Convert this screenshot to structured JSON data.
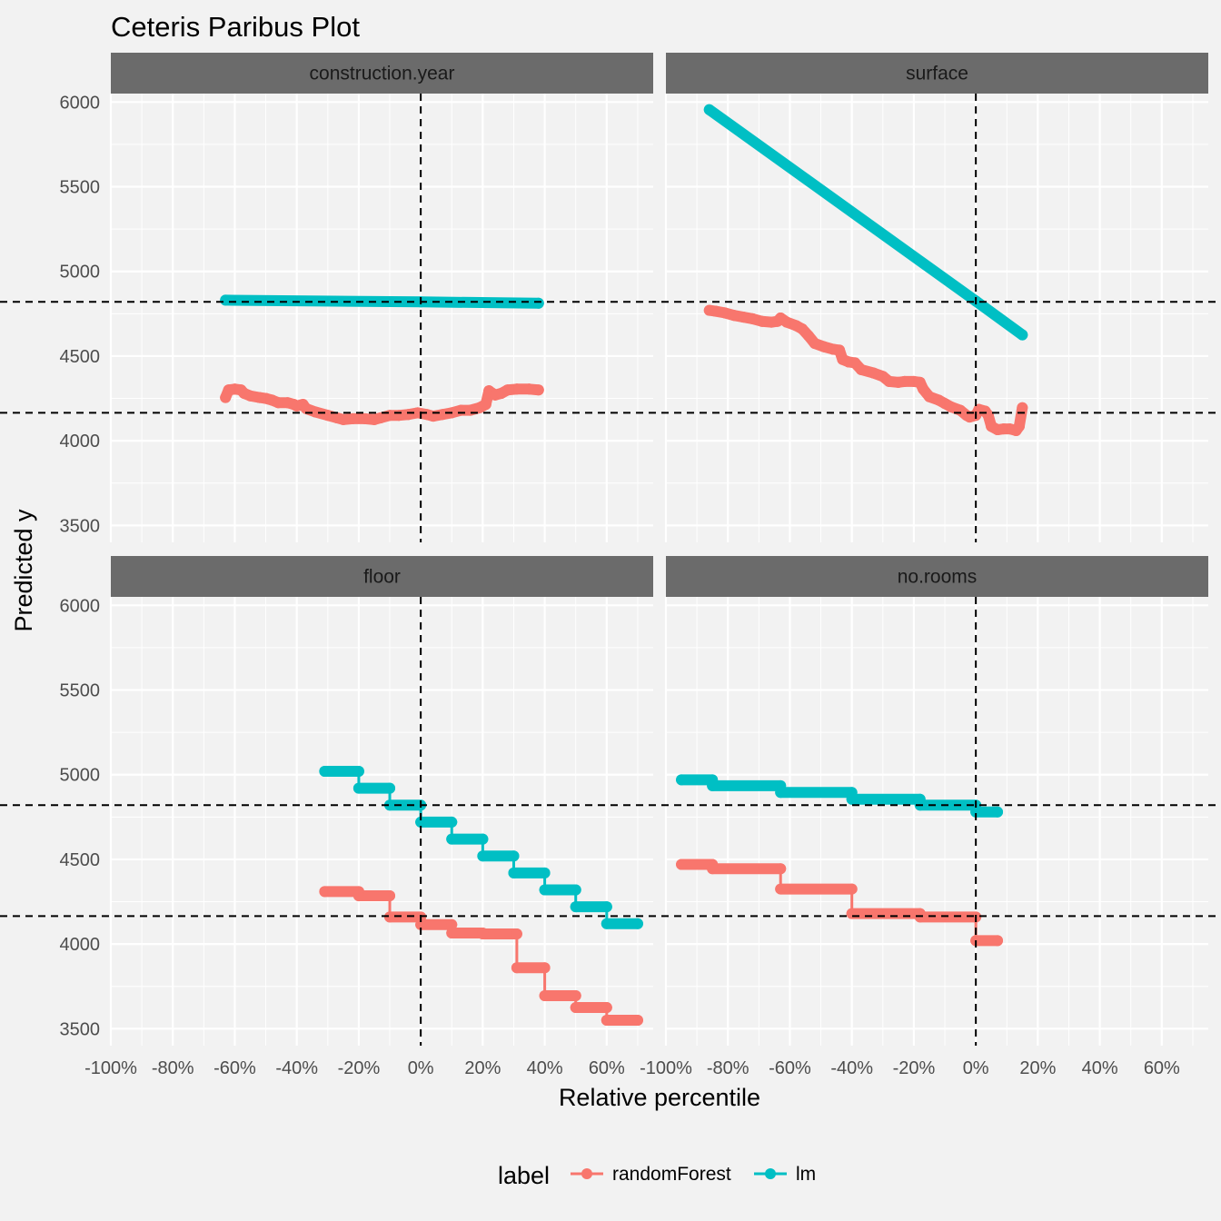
{
  "chart_data": {
    "type": "line",
    "title": "Ceteris Paribus Plot",
    "xlabel": "Relative percentile",
    "ylabel": "Predicted y",
    "xlim": [
      -1.0,
      0.75
    ],
    "ylim": [
      3400,
      6050
    ],
    "x_ticks": [
      -1.0,
      -0.8,
      -0.6,
      -0.4,
      -0.2,
      0.0,
      0.2,
      0.4,
      0.6
    ],
    "x_tick_labels": [
      "-100%",
      "-80%",
      "-60%",
      "-40%",
      "-20%",
      "0%",
      "20%",
      "40%",
      "60%"
    ],
    "y_ticks": [
      3500,
      4000,
      4500,
      5000,
      5500,
      6000
    ],
    "y_tick_labels": [
      "3500",
      "4000",
      "4500",
      "5000",
      "5500",
      "6000"
    ],
    "reference_lines": {
      "vertical_x": 0.0,
      "horizontal_y": [
        4820,
        4165
      ]
    },
    "grid": true,
    "legend": {
      "title": "label",
      "position": "bottom",
      "entries": [
        {
          "name": "randomForest",
          "color": "#F8766D"
        },
        {
          "name": "lm",
          "color": "#00BFC4"
        }
      ]
    },
    "panels": [
      {
        "name": "construction.year",
        "series": [
          {
            "name": "lm",
            "points": [
              [
                -0.63,
                4830
              ],
              [
                0.0,
                4820
              ],
              [
                0.38,
                4812
              ]
            ]
          },
          {
            "name": "randomForest",
            "points": [
              [
                -0.63,
                4255
              ],
              [
                -0.62,
                4300
              ],
              [
                -0.6,
                4305
              ],
              [
                -0.58,
                4300
              ],
              [
                -0.57,
                4280
              ],
              [
                -0.55,
                4265
              ],
              [
                -0.52,
                4255
              ],
              [
                -0.5,
                4250
              ],
              [
                -0.48,
                4240
              ],
              [
                -0.46,
                4225
              ],
              [
                -0.43,
                4225
              ],
              [
                -0.41,
                4215
              ],
              [
                -0.4,
                4205
              ],
              [
                -0.38,
                4215
              ],
              [
                -0.37,
                4190
              ],
              [
                -0.34,
                4170
              ],
              [
                -0.3,
                4150
              ],
              [
                -0.27,
                4135
              ],
              [
                -0.25,
                4125
              ],
              [
                -0.22,
                4130
              ],
              [
                -0.18,
                4130
              ],
              [
                -0.15,
                4125
              ],
              [
                -0.13,
                4135
              ],
              [
                -0.1,
                4150
              ],
              [
                -0.07,
                4150
              ],
              [
                -0.04,
                4155
              ],
              [
                -0.01,
                4165
              ],
              [
                0.02,
                4155
              ],
              [
                0.04,
                4145
              ],
              [
                0.07,
                4155
              ],
              [
                0.1,
                4165
              ],
              [
                0.13,
                4180
              ],
              [
                0.16,
                4180
              ],
              [
                0.19,
                4195
              ],
              [
                0.21,
                4215
              ],
              [
                0.22,
                4295
              ],
              [
                0.24,
                4270
              ],
              [
                0.26,
                4280
              ],
              [
                0.28,
                4300
              ],
              [
                0.31,
                4305
              ],
              [
                0.35,
                4305
              ],
              [
                0.38,
                4300
              ]
            ]
          }
        ]
      },
      {
        "name": "surface",
        "series": [
          {
            "name": "lm",
            "points": [
              [
                -0.86,
                5955
              ],
              [
                0.0,
                4825
              ],
              [
                0.15,
                4625
              ]
            ]
          },
          {
            "name": "randomForest",
            "points": [
              [
                -0.86,
                4770
              ],
              [
                -0.84,
                4765
              ],
              [
                -0.81,
                4755
              ],
              [
                -0.78,
                4740
              ],
              [
                -0.75,
                4730
              ],
              [
                -0.72,
                4720
              ],
              [
                -0.69,
                4705
              ],
              [
                -0.66,
                4700
              ],
              [
                -0.64,
                4705
              ],
              [
                -0.63,
                4725
              ],
              [
                -0.61,
                4700
              ],
              [
                -0.58,
                4680
              ],
              [
                -0.56,
                4660
              ],
              [
                -0.54,
                4620
              ],
              [
                -0.52,
                4575
              ],
              [
                -0.49,
                4555
              ],
              [
                -0.46,
                4540
              ],
              [
                -0.44,
                4535
              ],
              [
                -0.43,
                4480
              ],
              [
                -0.41,
                4465
              ],
              [
                -0.39,
                4460
              ],
              [
                -0.37,
                4420
              ],
              [
                -0.33,
                4400
              ],
              [
                -0.3,
                4380
              ],
              [
                -0.28,
                4350
              ],
              [
                -0.25,
                4345
              ],
              [
                -0.23,
                4350
              ],
              [
                -0.2,
                4350
              ],
              [
                -0.18,
                4345
              ],
              [
                -0.17,
                4305
              ],
              [
                -0.15,
                4260
              ],
              [
                -0.12,
                4240
              ],
              [
                -0.1,
                4220
              ],
              [
                -0.08,
                4200
              ],
              [
                -0.05,
                4180
              ],
              [
                -0.03,
                4150
              ],
              [
                -0.02,
                4140
              ],
              [
                0.0,
                4150
              ],
              [
                0.01,
                4185
              ],
              [
                0.03,
                4175
              ],
              [
                0.04,
                4150
              ],
              [
                0.05,
                4085
              ],
              [
                0.07,
                4065
              ],
              [
                0.09,
                4070
              ],
              [
                0.11,
                4070
              ],
              [
                0.13,
                4060
              ],
              [
                0.14,
                4085
              ],
              [
                0.15,
                4195
              ]
            ]
          }
        ]
      },
      {
        "name": "floor",
        "series": [
          {
            "name": "lm",
            "step": true,
            "points": [
              [
                -0.31,
                5020
              ],
              [
                -0.2,
                5020
              ],
              [
                -0.2,
                4920
              ],
              [
                -0.1,
                4920
              ],
              [
                -0.1,
                4820
              ],
              [
                0.0,
                4820
              ],
              [
                0.0,
                4720
              ],
              [
                0.1,
                4720
              ],
              [
                0.1,
                4620
              ],
              [
                0.2,
                4620
              ],
              [
                0.2,
                4520
              ],
              [
                0.3,
                4520
              ],
              [
                0.3,
                4420
              ],
              [
                0.4,
                4420
              ],
              [
                0.4,
                4320
              ],
              [
                0.5,
                4320
              ],
              [
                0.5,
                4220
              ],
              [
                0.6,
                4220
              ],
              [
                0.6,
                4120
              ],
              [
                0.7,
                4120
              ]
            ]
          },
          {
            "name": "randomForest",
            "step": true,
            "points": [
              [
                -0.31,
                4310
              ],
              [
                -0.2,
                4310
              ],
              [
                -0.2,
                4285
              ],
              [
                -0.1,
                4285
              ],
              [
                -0.1,
                4160
              ],
              [
                0.0,
                4160
              ],
              [
                0.0,
                4115
              ],
              [
                0.1,
                4115
              ],
              [
                0.1,
                4065
              ],
              [
                0.2,
                4065
              ],
              [
                0.2,
                4060
              ],
              [
                0.31,
                4060
              ],
              [
                0.31,
                3860
              ],
              [
                0.4,
                3860
              ],
              [
                0.4,
                3695
              ],
              [
                0.5,
                3695
              ],
              [
                0.5,
                3625
              ],
              [
                0.6,
                3625
              ],
              [
                0.6,
                3550
              ],
              [
                0.7,
                3550
              ]
            ]
          }
        ]
      },
      {
        "name": "no.rooms",
        "series": [
          {
            "name": "lm",
            "step": true,
            "points": [
              [
                -0.95,
                4970
              ],
              [
                -0.85,
                4970
              ],
              [
                -0.85,
                4935
              ],
              [
                -0.63,
                4935
              ],
              [
                -0.63,
                4895
              ],
              [
                -0.4,
                4895
              ],
              [
                -0.4,
                4855
              ],
              [
                -0.18,
                4855
              ],
              [
                -0.18,
                4820
              ],
              [
                0.0,
                4820
              ],
              [
                0.0,
                4780
              ],
              [
                0.07,
                4780
              ]
            ]
          },
          {
            "name": "randomForest",
            "step": true,
            "points": [
              [
                -0.95,
                4470
              ],
              [
                -0.85,
                4470
              ],
              [
                -0.85,
                4445
              ],
              [
                -0.63,
                4445
              ],
              [
                -0.63,
                4325
              ],
              [
                -0.4,
                4325
              ],
              [
                -0.4,
                4180
              ],
              [
                -0.18,
                4180
              ],
              [
                -0.18,
                4160
              ],
              [
                0.0,
                4160
              ],
              [
                0.0,
                4020
              ],
              [
                0.07,
                4020
              ]
            ]
          }
        ]
      }
    ]
  }
}
